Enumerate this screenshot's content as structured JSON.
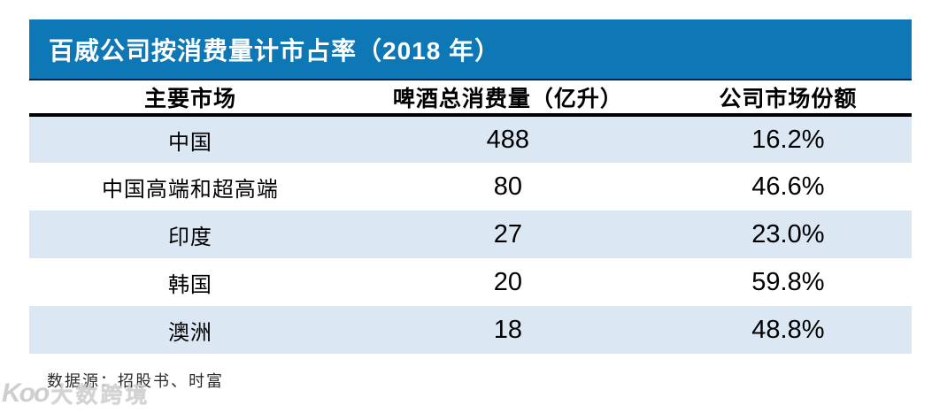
{
  "title": "百威公司按消费量计市占率（2018 年）",
  "colors": {
    "title_bar_bg": "#0e78b6",
    "title_text": "#ffffff",
    "row_stripe": "#dbe7f3",
    "header_divider": "#000000"
  },
  "table": {
    "columns": [
      "主要市场",
      "啤酒总消费量（亿升）",
      "公司市场份额"
    ],
    "rows": [
      {
        "market": "中国",
        "consumption": "488",
        "share": "16.2%"
      },
      {
        "market": "中国高端和超高端",
        "consumption": "80",
        "share": "46.6%"
      },
      {
        "market": "印度",
        "consumption": "27",
        "share": "23.0%"
      },
      {
        "market": "韩国",
        "consumption": "20",
        "share": "59.8%"
      },
      {
        "market": "澳洲",
        "consumption": "18",
        "share": "48.8%"
      }
    ]
  },
  "footer": {
    "source": "数据源：招股书、时富"
  },
  "watermark": {
    "logo": "Koo",
    "text": "大数跨境"
  },
  "chart_data": {
    "type": "table",
    "title": "百威公司按消费量计市占率（2018 年）",
    "columns": [
      "主要市场",
      "啤酒总消费量（亿升）",
      "公司市场份额"
    ],
    "rows": [
      [
        "中国",
        488,
        "16.2%"
      ],
      [
        "中国高端和超高端",
        80,
        "46.6%"
      ],
      [
        "印度",
        27,
        "23.0%"
      ],
      [
        "韩国",
        20,
        "59.8%"
      ],
      [
        "澳洲",
        18,
        "48.8%"
      ]
    ],
    "source": "数据源：招股书、时富",
    "layout": {
      "striped_rows": [
        0,
        2,
        4
      ],
      "header_bold": true,
      "grid": false
    }
  }
}
